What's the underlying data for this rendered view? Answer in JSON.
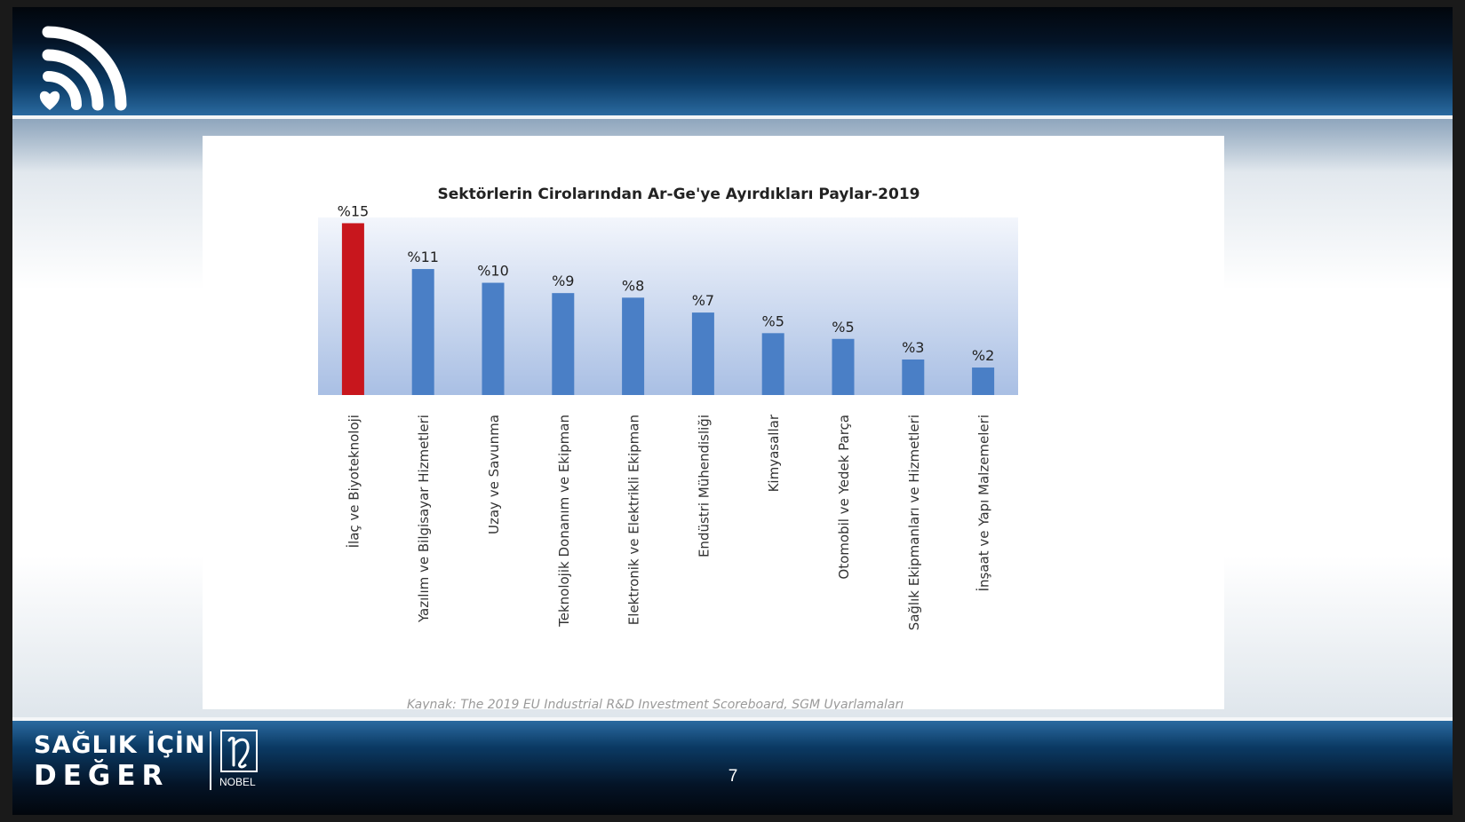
{
  "brand": {
    "line1": "SAĞLIK İÇİN",
    "line2": "DEĞER",
    "partner": "NOBEL"
  },
  "page_number": "7",
  "chart_data": {
    "type": "bar",
    "title": "Sektörlerin Cirolarından Ar-Ge'ye Ayırdıkları Paylar-2019",
    "xlabel": "",
    "ylabel": "",
    "ylim": [
      0,
      15.5
    ],
    "categories": [
      "İlaç ve Biyoteknoloji",
      "Yazılım ve Bilgisayar Hizmetleri",
      "Uzay ve Savunma",
      "Teknolojik Donanım ve Ekipman",
      "Elektronik ve Elektrikli Ekipman",
      "Endüstri Mühendisliği",
      "Kimyasallar",
      "Otomobil ve Yedek Parça",
      "Sağlık Ekipmanları ve Hizmetleri",
      "İnşaat ve Yapı Malzemeleri"
    ],
    "values": [
      15.0,
      11.0,
      9.8,
      8.9,
      8.5,
      7.2,
      5.4,
      4.9,
      3.1,
      2.4
    ],
    "data_labels": [
      "%15",
      "%11",
      "%10",
      "%9",
      "%8",
      "%7",
      "%5",
      "%5",
      "%3",
      "%2"
    ],
    "highlight_index": 0,
    "colors": {
      "highlight": "#c8161d",
      "bar": "#4a7fc6"
    },
    "grid": false,
    "legend": "none",
    "source": "Kaynak: The 2019 EU Industrial R&D Investment Scoreboard, SGM Uyarlamaları"
  }
}
